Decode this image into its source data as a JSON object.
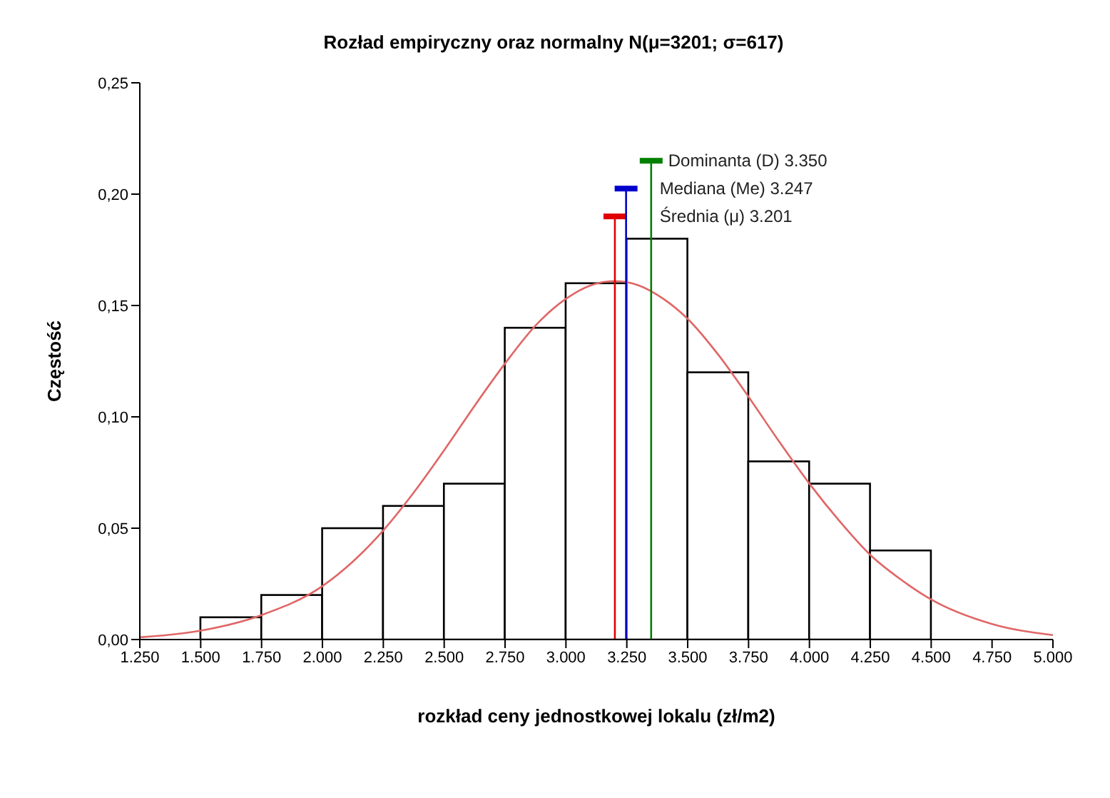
{
  "chart_data": {
    "type": "histogram",
    "title": "Rozład empiryczny oraz normalny N(μ=3201; σ=617)",
    "xlabel": "rozkład ceny jednostkowej lokalu (zł/m2)",
    "ylabel": "Częstość",
    "bins": [
      1250,
      1500,
      1750,
      2000,
      2250,
      2500,
      2750,
      3000,
      3250,
      3500,
      3750,
      4000,
      4250,
      4500,
      4750,
      5000
    ],
    "values": [
      0,
      0.01,
      0.02,
      0.05,
      0.06,
      0.07,
      0.14,
      0.16,
      0.18,
      0.12,
      0.08,
      0.07,
      0.04,
      0,
      0
    ],
    "color": "#ffffff",
    "series": [
      {
        "type": "line",
        "color": "#e06666",
        "x": [
          1250,
          1500,
          1750,
          2000,
          2125,
          2250,
          2375,
          2500,
          2625,
          2750,
          2875,
          3000,
          3100,
          3200,
          3300,
          3400,
          3500,
          3625,
          3750,
          3875,
          4000,
          4125,
          4250,
          4375,
          4500,
          4750,
          5000
        ],
        "values": [
          0.001,
          0.004,
          0.011,
          0.024,
          0.035,
          0.049,
          0.066,
          0.085,
          0.105,
          0.124,
          0.141,
          0.153,
          0.159,
          0.161,
          0.159,
          0.153,
          0.144,
          0.128,
          0.109,
          0.089,
          0.07,
          0.053,
          0.038,
          0.027,
          0.018,
          0.007,
          0.002
        ]
      }
    ],
    "ref_lines": [
      {
        "axis": "x",
        "value": 3201,
        "label": "Średnia (μ) 3.201",
        "color": "#e00000"
      },
      {
        "axis": "x",
        "value": 3247,
        "label": "Mediana (Me) 3.247",
        "color": "#0000cc"
      },
      {
        "axis": "x",
        "value": 3350,
        "label": "Dominanta (D) 3.350",
        "color": "#008000"
      }
    ],
    "xlim": [
      1250,
      5000
    ],
    "xticks": [
      {
        "value": 1250,
        "label": "1.250"
      },
      {
        "value": 1500,
        "label": "1.500"
      },
      {
        "value": 1750,
        "label": "1.750"
      },
      {
        "value": 2000,
        "label": "2.000"
      },
      {
        "value": 2250,
        "label": "2.250"
      },
      {
        "value": 2500,
        "label": "2.500"
      },
      {
        "value": 2750,
        "label": "2.750"
      },
      {
        "value": 3000,
        "label": "3.000"
      },
      {
        "value": 3250,
        "label": "3.250"
      },
      {
        "value": 3500,
        "label": "3.500"
      },
      {
        "value": 3750,
        "label": "3.750"
      },
      {
        "value": 4000,
        "label": "4.000"
      },
      {
        "value": 4250,
        "label": "4.250"
      },
      {
        "value": 4500,
        "label": "4.500"
      },
      {
        "value": 4750,
        "label": "4.750"
      },
      {
        "value": 5000,
        "label": "5.000"
      }
    ],
    "ylim": [
      0,
      0.25
    ],
    "yticks": [
      {
        "value": 0,
        "label": "0,00"
      },
      {
        "value": 0.05,
        "label": "0,05"
      },
      {
        "value": 0.1,
        "label": "0,10"
      },
      {
        "value": 0.15,
        "label": "0,15"
      },
      {
        "value": 0.2,
        "label": "0,20"
      },
      {
        "value": 0.25,
        "label": "0,25"
      }
    ],
    "grid": false
  }
}
